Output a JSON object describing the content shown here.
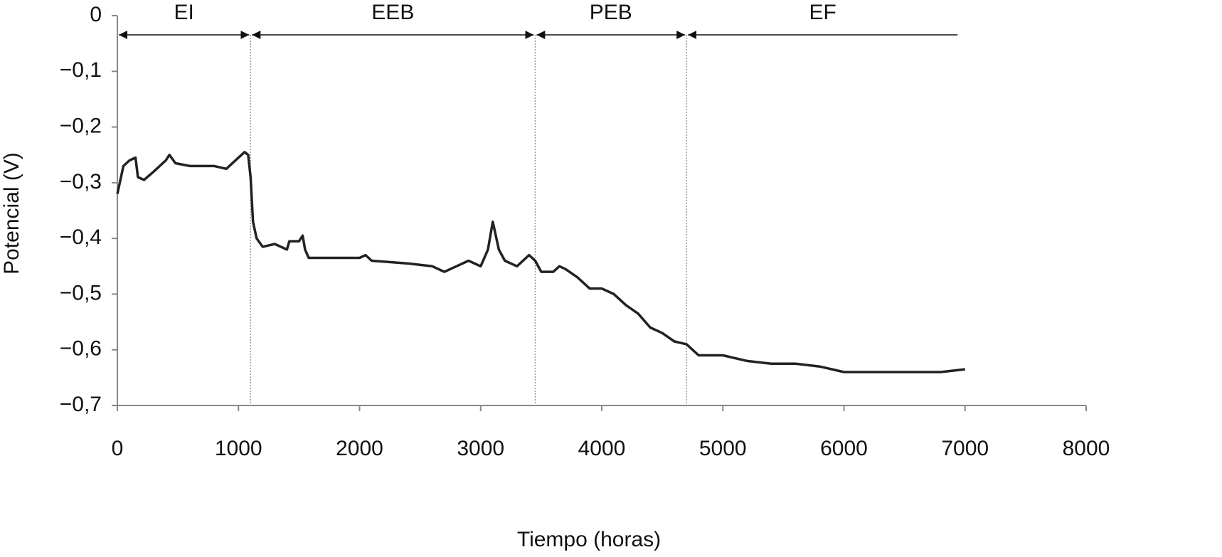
{
  "chart_data": {
    "type": "line",
    "x_label": "Tiempo (horas)",
    "y_label": "Potencial (V)",
    "xlim": [
      0,
      8000
    ],
    "xticks": [
      0,
      1000,
      2000,
      3000,
      4000,
      5000,
      6000,
      7000,
      8000
    ],
    "ylim": [
      -0.7,
      0
    ],
    "yticks": [
      0,
      {
        "value": -0.1,
        "label": "−0,1"
      },
      {
        "value": -0.2,
        "label": "−0,2"
      },
      {
        "value": -0.3,
        "label": "−0,3"
      },
      {
        "value": -0.4,
        "label": "−0,4"
      },
      {
        "value": -0.5,
        "label": "−0,5"
      },
      {
        "value": -0.6,
        "label": "−0,6"
      },
      {
        "value": -0.7,
        "label": "−0,7"
      }
    ],
    "grid": false,
    "regions": [
      {
        "label": "EI",
        "start": 0,
        "end": 1100
      },
      {
        "label": "EEB",
        "start": 1100,
        "end": 3450
      },
      {
        "label": "PEB",
        "start": 3450,
        "end": 4700
      },
      {
        "label": "EF",
        "start": 4700,
        "end": 6950
      }
    ],
    "x": [
      0,
      20,
      50,
      100,
      150,
      170,
      220,
      300,
      400,
      430,
      480,
      600,
      800,
      900,
      1000,
      1050,
      1080,
      1100,
      1120,
      1150,
      1200,
      1300,
      1400,
      1420,
      1500,
      1530,
      1550,
      1580,
      1800,
      2000,
      2050,
      2100,
      2400,
      2600,
      2700,
      2800,
      2900,
      3000,
      3060,
      3100,
      3150,
      3200,
      3300,
      3400,
      3450,
      3500,
      3600,
      3650,
      3700,
      3800,
      3900,
      4000,
      4100,
      4200,
      4300,
      4400,
      4500,
      4600,
      4700,
      4800,
      5000,
      5200,
      5400,
      5600,
      5800,
      6000,
      6200,
      6500,
      6800,
      7000
    ],
    "series": [
      {
        "color": "#222222",
        "values": [
          -0.32,
          -0.3,
          -0.27,
          -0.26,
          -0.255,
          -0.29,
          -0.295,
          -0.28,
          -0.26,
          -0.25,
          -0.265,
          -0.27,
          -0.27,
          -0.275,
          -0.255,
          -0.245,
          -0.25,
          -0.29,
          -0.37,
          -0.4,
          -0.415,
          -0.41,
          -0.42,
          -0.405,
          -0.405,
          -0.395,
          -0.42,
          -0.435,
          -0.435,
          -0.435,
          -0.43,
          -0.44,
          -0.445,
          -0.45,
          -0.46,
          -0.45,
          -0.44,
          -0.45,
          -0.42,
          -0.37,
          -0.42,
          -0.44,
          -0.45,
          -0.43,
          -0.44,
          -0.46,
          -0.46,
          -0.45,
          -0.455,
          -0.47,
          -0.49,
          -0.49,
          -0.5,
          -0.52,
          -0.535,
          -0.56,
          -0.57,
          -0.585,
          -0.59,
          -0.61,
          -0.61,
          -0.62,
          -0.625,
          -0.625,
          -0.63,
          -0.64,
          -0.64,
          -0.64,
          -0.64,
          -0.635
        ]
      }
    ]
  }
}
